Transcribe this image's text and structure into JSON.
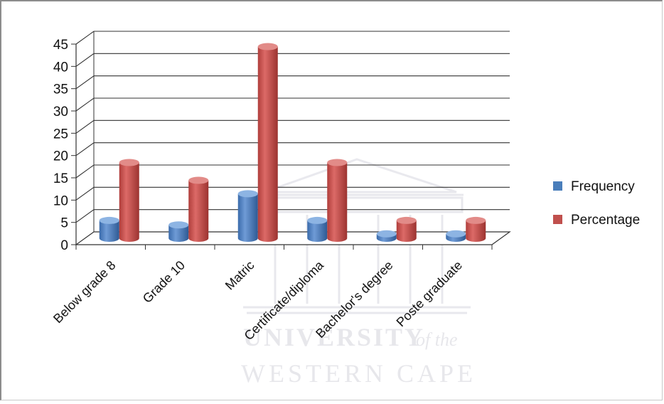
{
  "chart_data": {
    "type": "bar",
    "title": "",
    "xlabel": "",
    "ylabel": "",
    "categories": [
      "Below grade 8",
      "Grade 10",
      "Matric",
      "Certificate/diploma",
      "Bachelor's degree",
      "Poste graduate"
    ],
    "series": [
      {
        "name": "Frequency",
        "color": "#4a7ebb",
        "values": [
          4,
          3,
          10,
          4,
          1,
          1
        ]
      },
      {
        "name": "Percentage",
        "color": "#c0504d",
        "values": [
          17,
          13,
          43,
          17,
          4,
          4
        ]
      }
    ],
    "ylim": [
      0,
      45
    ],
    "yticks": [
      0,
      5,
      10,
      15,
      20,
      25,
      30,
      35,
      40,
      45
    ],
    "grid": true,
    "style": "3d-cylinder",
    "legend_position": "right"
  },
  "watermark": {
    "line1": "UNIVERSITY",
    "line1_suffix": "of the",
    "line2": "WESTERN CAPE",
    "color": "#d4d4dc"
  }
}
